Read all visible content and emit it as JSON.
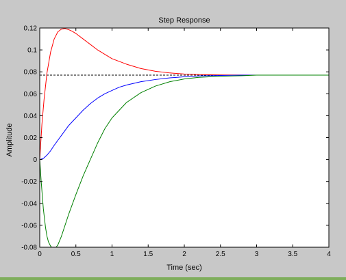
{
  "chart_data": {
    "type": "line",
    "title": "Step Response",
    "xlabel": "Time (sec)",
    "ylabel": "Amplitude",
    "xlim": [
      0,
      4
    ],
    "ylim": [
      -0.08,
      0.12
    ],
    "xticks": [
      0,
      0.5,
      1,
      1.5,
      2,
      2.5,
      3,
      3.5,
      4
    ],
    "xtick_labels": [
      "0",
      "0.5",
      "1",
      "1.5",
      "2",
      "2.5",
      "3",
      "3.5",
      "4"
    ],
    "yticks": [
      -0.08,
      -0.06,
      -0.04,
      -0.02,
      0,
      0.02,
      0.04,
      0.06,
      0.08,
      0.1,
      0.12
    ],
    "ytick_labels": [
      "-0.08",
      "-0.06",
      "-0.04",
      "-0.02",
      "0",
      "0.02",
      "0.04",
      "0.06",
      "0.08",
      "0.1",
      "0.12"
    ],
    "grid": false,
    "reference_line": {
      "y": 0.077,
      "style": "dashed",
      "color": "#000000"
    },
    "series": [
      {
        "color": "#ff0000",
        "x": [
          0,
          0.03,
          0.06,
          0.1,
          0.15,
          0.2,
          0.25,
          0.3,
          0.35,
          0.4,
          0.45,
          0.5,
          0.6,
          0.7,
          0.8,
          0.9,
          1.0,
          1.2,
          1.4,
          1.6,
          1.8,
          2.0,
          2.2,
          2.5,
          2.8,
          3.0,
          3.5,
          4.0
        ],
        "y": [
          0,
          0.032,
          0.055,
          0.079,
          0.098,
          0.11,
          0.1165,
          0.119,
          0.1195,
          0.1185,
          0.117,
          0.115,
          0.11,
          0.105,
          0.1,
          0.096,
          0.092,
          0.087,
          0.083,
          0.0805,
          0.079,
          0.078,
          0.0775,
          0.0772,
          0.0771,
          0.077,
          0.077,
          0.077
        ]
      },
      {
        "color": "#0000ff",
        "x": [
          0,
          0.05,
          0.1,
          0.15,
          0.2,
          0.3,
          0.4,
          0.5,
          0.6,
          0.7,
          0.8,
          0.9,
          1.0,
          1.1,
          1.2,
          1.4,
          1.6,
          1.8,
          2.0,
          2.2,
          2.5,
          2.8,
          3.0,
          3.5,
          4.0
        ],
        "y": [
          0,
          0.001,
          0.004,
          0.008,
          0.013,
          0.022,
          0.031,
          0.038,
          0.045,
          0.051,
          0.056,
          0.06,
          0.063,
          0.066,
          0.068,
          0.071,
          0.073,
          0.0745,
          0.0755,
          0.0763,
          0.0767,
          0.077,
          0.077,
          0.077,
          0.077
        ]
      },
      {
        "color": "#008000",
        "x": [
          0,
          0.02,
          0.05,
          0.08,
          0.1,
          0.12,
          0.15,
          0.18,
          0.2,
          0.22,
          0.25,
          0.3,
          0.35,
          0.4,
          0.5,
          0.6,
          0.7,
          0.8,
          0.9,
          1.0,
          1.2,
          1.4,
          1.6,
          1.8,
          2.0,
          2.2,
          2.5,
          2.8,
          3.0,
          3.5,
          4.0
        ],
        "y": [
          0,
          -0.02,
          -0.045,
          -0.062,
          -0.07,
          -0.075,
          -0.079,
          -0.081,
          -0.0812,
          -0.0805,
          -0.078,
          -0.07,
          -0.06,
          -0.05,
          -0.032,
          -0.015,
          0.0,
          0.015,
          0.028,
          0.038,
          0.052,
          0.061,
          0.067,
          0.071,
          0.0735,
          0.075,
          0.076,
          0.0765,
          0.077,
          0.077,
          0.077
        ]
      }
    ]
  }
}
